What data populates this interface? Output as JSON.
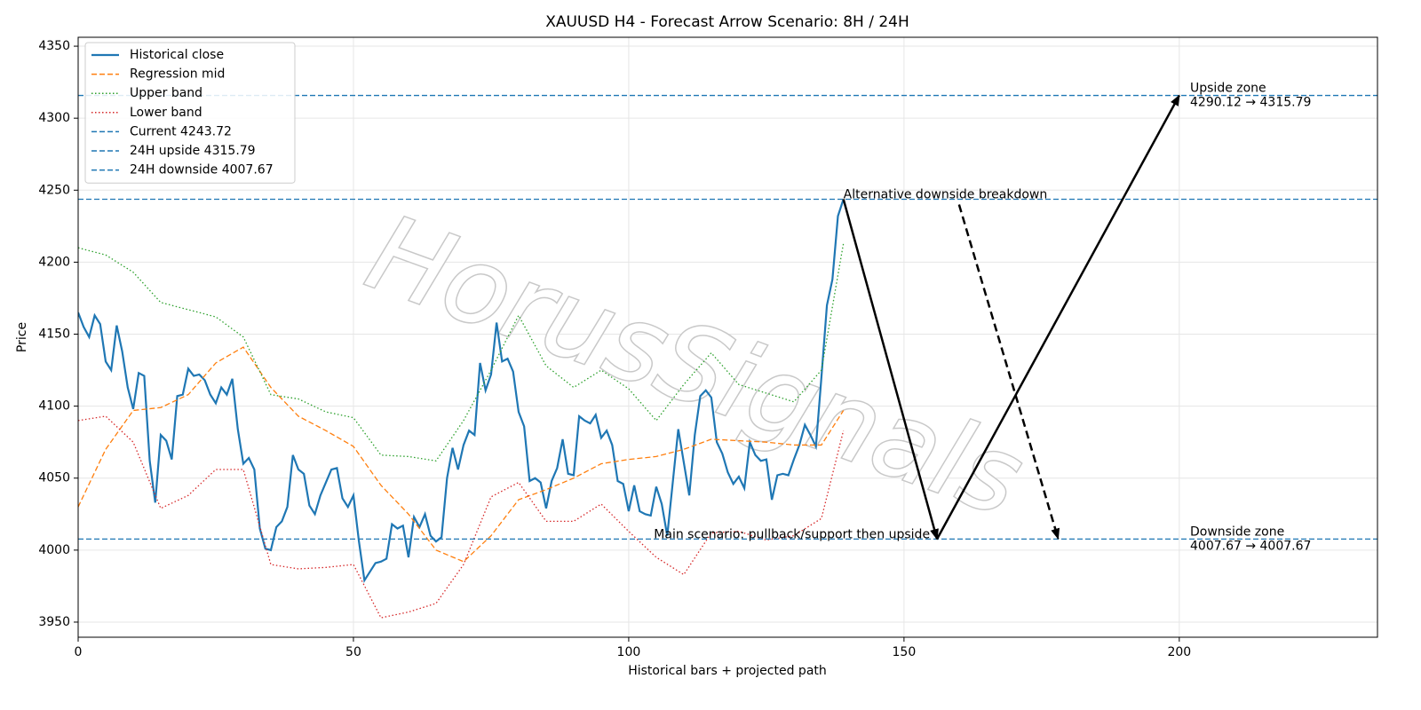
{
  "chart_data": {
    "type": "line",
    "title": "XAUUSD H4 - Forecast Arrow Scenario: 8H / 24H",
    "xlabel": "Historical bars + projected path",
    "ylabel": "Price",
    "xlim": [
      0,
      236
    ],
    "ylim": [
      3939.5,
      4356.2
    ],
    "xticks": [
      0,
      50,
      100,
      150,
      200
    ],
    "yticks": [
      3950,
      4000,
      4050,
      4100,
      4150,
      4200,
      4250,
      4300,
      4350
    ],
    "grid": true,
    "legend": "upper left",
    "x": [
      0,
      1,
      2,
      3,
      4,
      5,
      6,
      7,
      8,
      9,
      10,
      11,
      12,
      13,
      14,
      15,
      16,
      17,
      18,
      19,
      20,
      21,
      22,
      23,
      24,
      25,
      26,
      27,
      28,
      29,
      30,
      31,
      32,
      33,
      34,
      35,
      36,
      37,
      38,
      39,
      40,
      41,
      42,
      43,
      44,
      45,
      46,
      47,
      48,
      49,
      50,
      51,
      52,
      53,
      54,
      55,
      56,
      57,
      58,
      59,
      60,
      61,
      62,
      63,
      64,
      65,
      66,
      67,
      68,
      69,
      70,
      71,
      72,
      73,
      74,
      75,
      76,
      77,
      78,
      79,
      80,
      81,
      82,
      83,
      84,
      85,
      86,
      87,
      88,
      89,
      90,
      91,
      92,
      93,
      94,
      95,
      96,
      97,
      98,
      99,
      100,
      101,
      102,
      103,
      104,
      105,
      106,
      107,
      108,
      109,
      110,
      111,
      112,
      113,
      114,
      115,
      116,
      117,
      118,
      119,
      120,
      121,
      122,
      123,
      124,
      125,
      126,
      127,
      128,
      129,
      130,
      131,
      132,
      133,
      134,
      135,
      136,
      137,
      138,
      139
    ],
    "series": [
      {
        "name": "Historical close",
        "color": "#1f77b4",
        "linestyle": "solid",
        "values": [
          4165,
          4155,
          4148,
          4163,
          4157,
          4131,
          4125,
          4156,
          4138,
          4113,
          4098,
          4123,
          4121,
          4062,
          4033,
          4080,
          4076,
          4063,
          4107,
          4108,
          4126,
          4121,
          4122,
          4118,
          4108,
          4102,
          4113,
          4108,
          4119,
          4084,
          4060,
          4064,
          4056,
          4015,
          4001,
          4000,
          4016,
          4020,
          4030,
          4066,
          4056,
          4053,
          4031,
          4025,
          4038,
          4047,
          4056,
          4057,
          4036,
          4030,
          4038,
          4006,
          3979,
          3985,
          3991,
          3992,
          3994,
          4018,
          4015,
          4017,
          3995,
          4023,
          4016,
          4025,
          4010,
          4006,
          4009,
          4050,
          4071,
          4056,
          4073,
          4083,
          4080,
          4130,
          4111,
          4122,
          4158,
          4131,
          4133,
          4124,
          4096,
          4086,
          4048,
          4050,
          4047,
          4029,
          4048,
          4057,
          4077,
          4053,
          4052,
          4093,
          4090,
          4088,
          4094,
          4078,
          4083,
          4073,
          4048,
          4046,
          4027,
          4045,
          4027,
          4025,
          4024,
          4044,
          4032,
          4010,
          4047,
          4084,
          4061,
          4038,
          4080,
          4107,
          4111,
          4106,
          4075,
          4067,
          4054,
          4046,
          4051,
          4043,
          4075,
          4066,
          4062,
          4063,
          4035,
          4052,
          4053,
          4052,
          4063,
          4073,
          4087,
          4080,
          4072,
          4120,
          4170,
          4188,
          4232,
          4243.72
        ]
      },
      {
        "name": "Regression mid",
        "color": "#ff7f0e",
        "linestyle": "dashed",
        "x": [
          0,
          5,
          10,
          15,
          20,
          25,
          30,
          35,
          40,
          45,
          50,
          55,
          60,
          65,
          70,
          75,
          80,
          85,
          90,
          95,
          100,
          105,
          110,
          115,
          120,
          125,
          130,
          135,
          139
        ],
        "values": [
          4030,
          4070,
          4097,
          4099,
          4108,
          4130,
          4141,
          4113,
          4093,
          4083,
          4072,
          4045,
          4025,
          4000,
          3992,
          4010,
          4035,
          4042,
          4050,
          4060,
          4063,
          4065,
          4070,
          4077,
          4076,
          4075,
          4073,
          4073,
          4097
        ]
      },
      {
        "name": "Upper band",
        "color": "#2ca02c",
        "linestyle": "dotted",
        "x": [
          0,
          5,
          10,
          15,
          20,
          25,
          30,
          35,
          40,
          45,
          50,
          55,
          60,
          65,
          70,
          75,
          80,
          85,
          90,
          95,
          100,
          105,
          110,
          115,
          120,
          125,
          130,
          135,
          139
        ],
        "values": [
          4210,
          4205,
          4193,
          4172,
          4167,
          4162,
          4148,
          4108,
          4105,
          4096,
          4092,
          4066,
          4065,
          4062,
          4090,
          4125,
          4163,
          4128,
          4113,
          4125,
          4112,
          4090,
          4115,
          4137,
          4115,
          4109,
          4103,
          4125,
          4213
        ]
      },
      {
        "name": "Lower band",
        "color": "#d62728",
        "linestyle": "dotted",
        "x": [
          0,
          5,
          10,
          15,
          20,
          25,
          30,
          35,
          40,
          45,
          50,
          55,
          60,
          65,
          70,
          75,
          80,
          85,
          90,
          95,
          100,
          105,
          110,
          115,
          120,
          125,
          130,
          135,
          139
        ],
        "values": [
          4090,
          4093,
          4075,
          4029,
          4038,
          4056,
          4056,
          3990,
          3987,
          3988,
          3990,
          3953,
          3957,
          3963,
          3990,
          4037,
          4047,
          4020,
          4020,
          4032,
          4013,
          3995,
          3983,
          4012,
          4013,
          4007,
          4010,
          4022,
          4083
        ]
      }
    ],
    "hlines": [
      {
        "name": "Current 4243.72",
        "value": 4243.72,
        "color": "#1f77b4",
        "linestyle": "dashed"
      },
      {
        "name": "24H upside 4315.79",
        "value": 4315.79,
        "color": "#1f77b4",
        "linestyle": "dashed"
      },
      {
        "name": "24H downside 4007.67",
        "value": 4007.67,
        "color": "#1f77b4",
        "linestyle": "dashed"
      }
    ],
    "arrows": [
      {
        "from": [
          139,
          4243.72
        ],
        "to": [
          156,
          4007.67
        ],
        "linestyle": "solid"
      },
      {
        "from": [
          156,
          4007.67
        ],
        "to": [
          200,
          4315.79
        ],
        "linestyle": "solid"
      },
      {
        "from": [
          160,
          4240
        ],
        "to": [
          178,
          4008
        ],
        "linestyle": "dashed"
      }
    ],
    "annotations": {
      "alternative": "Alternative downside breakdown",
      "main": "Main scenario: pullback/support then upside",
      "upside_zone": [
        "Upside zone",
        "4290.12 → 4315.79"
      ],
      "downside_zone": [
        "Downside zone",
        "4007.67 → 4007.67"
      ]
    },
    "watermark": "HorusSignals"
  }
}
